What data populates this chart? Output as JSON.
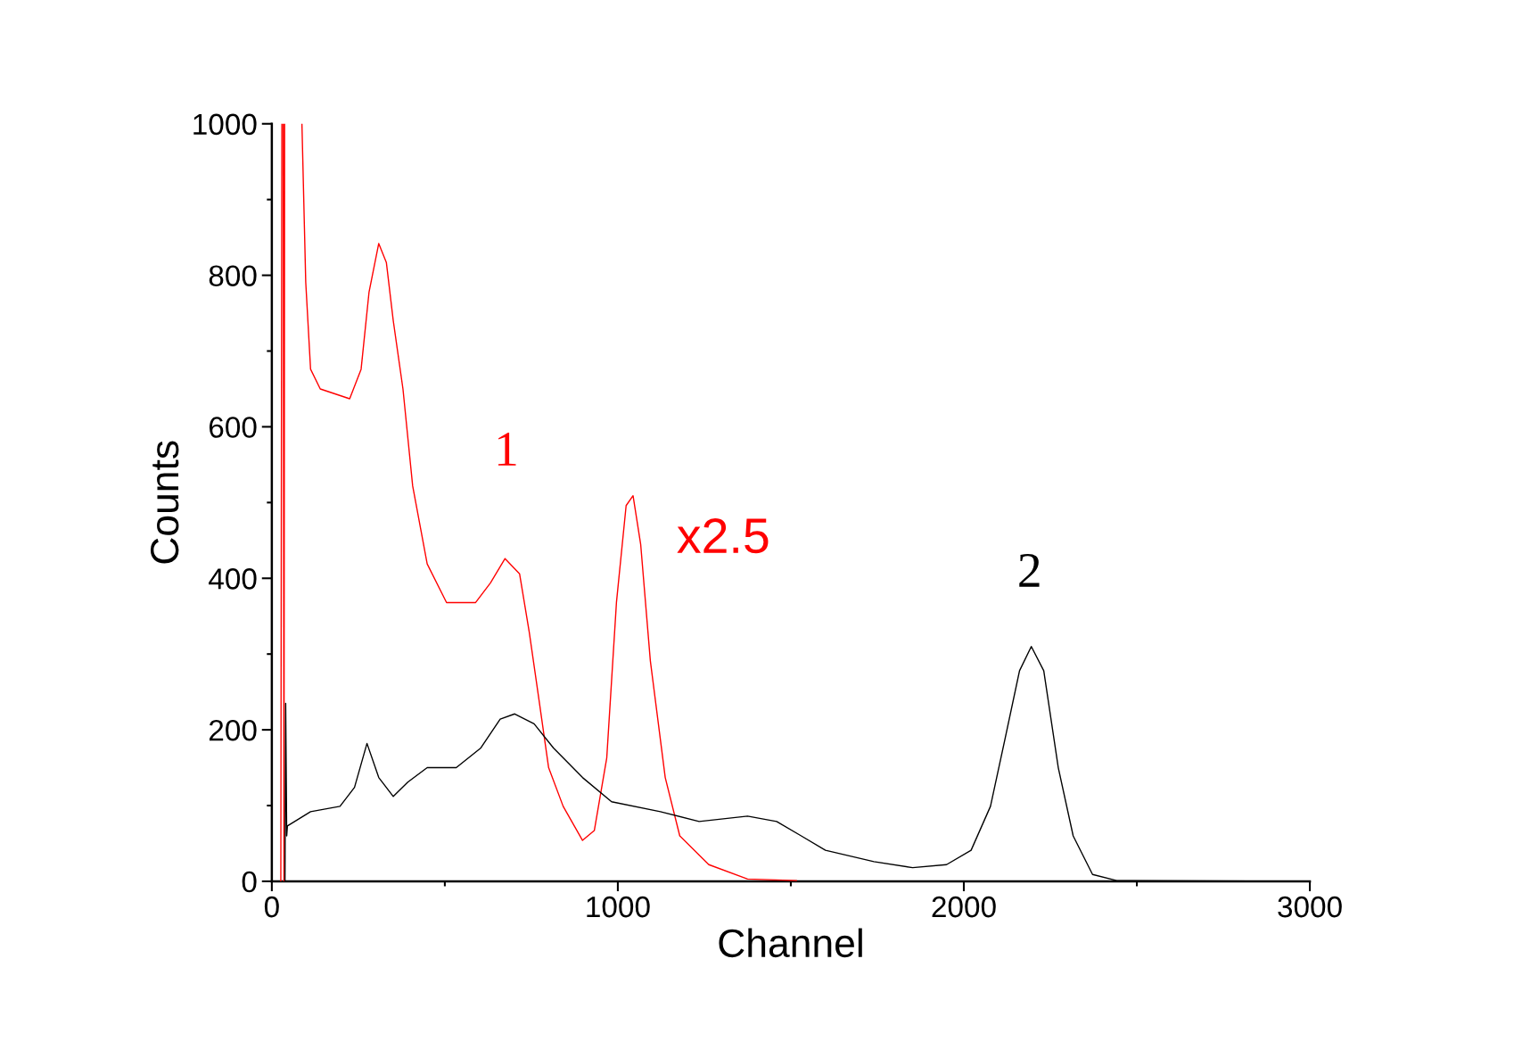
{
  "chart_data": {
    "type": "line",
    "xlabel": "Channel",
    "ylabel": "Counts",
    "xlim": [
      0,
      3000
    ],
    "ylim": [
      0,
      1000
    ],
    "xticks": [
      0,
      1000,
      2000,
      3000
    ],
    "yticks": [
      0,
      200,
      400,
      600,
      800,
      1000
    ],
    "grid": false,
    "legend": false,
    "series": [
      {
        "name": "1",
        "color": "#ff0000",
        "x": [
          26,
          29,
          31,
          33,
          35,
          37,
          60,
          87,
          98,
          112,
          140,
          225,
          258,
          281,
          309,
          331,
          351,
          379,
          407,
          449,
          505,
          589,
          632,
          674,
          716,
          744,
          772,
          800,
          842,
          898,
          932,
          968,
          996,
          1024,
          1044,
          1066,
          1094,
          1137,
          1179,
          1263,
          1375,
          1516
        ],
        "values": [
          0,
          1000,
          null,
          1000,
          0,
          1000,
          null,
          1000,
          791,
          676,
          650,
          637,
          676,
          778,
          842,
          817,
          740,
          650,
          522,
          419,
          368,
          368,
          394,
          426,
          406,
          329,
          240,
          150,
          99,
          54,
          67,
          163,
          368,
          496,
          509,
          445,
          291,
          137,
          60,
          22,
          3,
          1
        ]
      },
      {
        "name": "2",
        "color": "#000000",
        "x": [
          38,
          40,
          43,
          45,
          112,
          197,
          239,
          275,
          309,
          351,
          393,
          449,
          533,
          604,
          660,
          702,
          758,
          814,
          898,
          982,
          1123,
          1235,
          1375,
          1459,
          1530,
          1600,
          1740,
          1852,
          1950,
          2021,
          2077,
          2119,
          2161,
          2195,
          2231,
          2273,
          2316,
          2372,
          2442,
          3000
        ],
        "values": [
          0,
          235,
          60,
          73,
          92,
          99,
          124,
          182,
          137,
          112,
          131,
          150,
          150,
          176,
          214,
          221,
          208,
          176,
          137,
          105,
          92,
          79,
          86,
          79,
          60,
          41,
          26,
          18,
          22,
          41,
          99,
          188,
          278,
          310,
          278,
          150,
          60,
          9,
          1,
          0
        ]
      }
    ],
    "annotations": [
      "x2.5"
    ]
  }
}
